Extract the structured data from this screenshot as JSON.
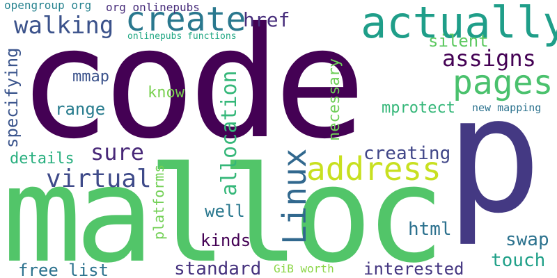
{
  "words": [
    {
      "text": "code",
      "color": "#440154"
    },
    {
      "text": "malloc",
      "color": "#52c569"
    },
    {
      "text": "p",
      "color": "#443983"
    },
    {
      "text": "actually",
      "color": "#1f9e89"
    },
    {
      "text": "create",
      "color": "#2a788e"
    },
    {
      "text": "pages",
      "color": "#4ac16d"
    },
    {
      "text": "address",
      "color": "#c8e020"
    },
    {
      "text": "Linux",
      "color": "#31688e"
    },
    {
      "text": "allocation",
      "color": "#35b779"
    },
    {
      "text": "assigns",
      "color": "#440154"
    },
    {
      "text": "walking",
      "color": "#3b528b"
    },
    {
      "text": "virtual",
      "color": "#3e4a89"
    },
    {
      "text": "sure",
      "color": "#482878"
    },
    {
      "text": "href",
      "color": "#472d7b"
    },
    {
      "text": "opengroup org",
      "color": "#26828e"
    },
    {
      "text": "org onlinepubs",
      "color": "#472c7a"
    },
    {
      "text": "onlinepubs functions",
      "color": "#22a884"
    },
    {
      "text": "silent",
      "color": "#5ec962"
    },
    {
      "text": "necessary",
      "color": "#6ece58"
    },
    {
      "text": "mmap",
      "color": "#3b528b"
    },
    {
      "text": "know",
      "color": "#7ad151"
    },
    {
      "text": "range",
      "color": "#287c8e"
    },
    {
      "text": "mprotect",
      "color": "#35b779"
    },
    {
      "text": "new mapping",
      "color": "#2c728e"
    },
    {
      "text": "specifying",
      "color": "#3a548c"
    },
    {
      "text": "details",
      "color": "#29af7f"
    },
    {
      "text": "creating",
      "color": "#404688"
    },
    {
      "text": "platforms",
      "color": "#73d056"
    },
    {
      "text": "well",
      "color": "#2a788e"
    },
    {
      "text": "kinds",
      "color": "#440154"
    },
    {
      "text": "html",
      "color": "#2c718e"
    },
    {
      "text": "swap",
      "color": "#2c728e"
    },
    {
      "text": "touch",
      "color": "#1fa088"
    },
    {
      "text": "standard",
      "color": "#46327e"
    },
    {
      "text": "free list",
      "color": "#2c728e"
    },
    {
      "text": "GiB worth",
      "color": "#8bd646"
    },
    {
      "text": "interested",
      "color": "#453781"
    }
  ]
}
